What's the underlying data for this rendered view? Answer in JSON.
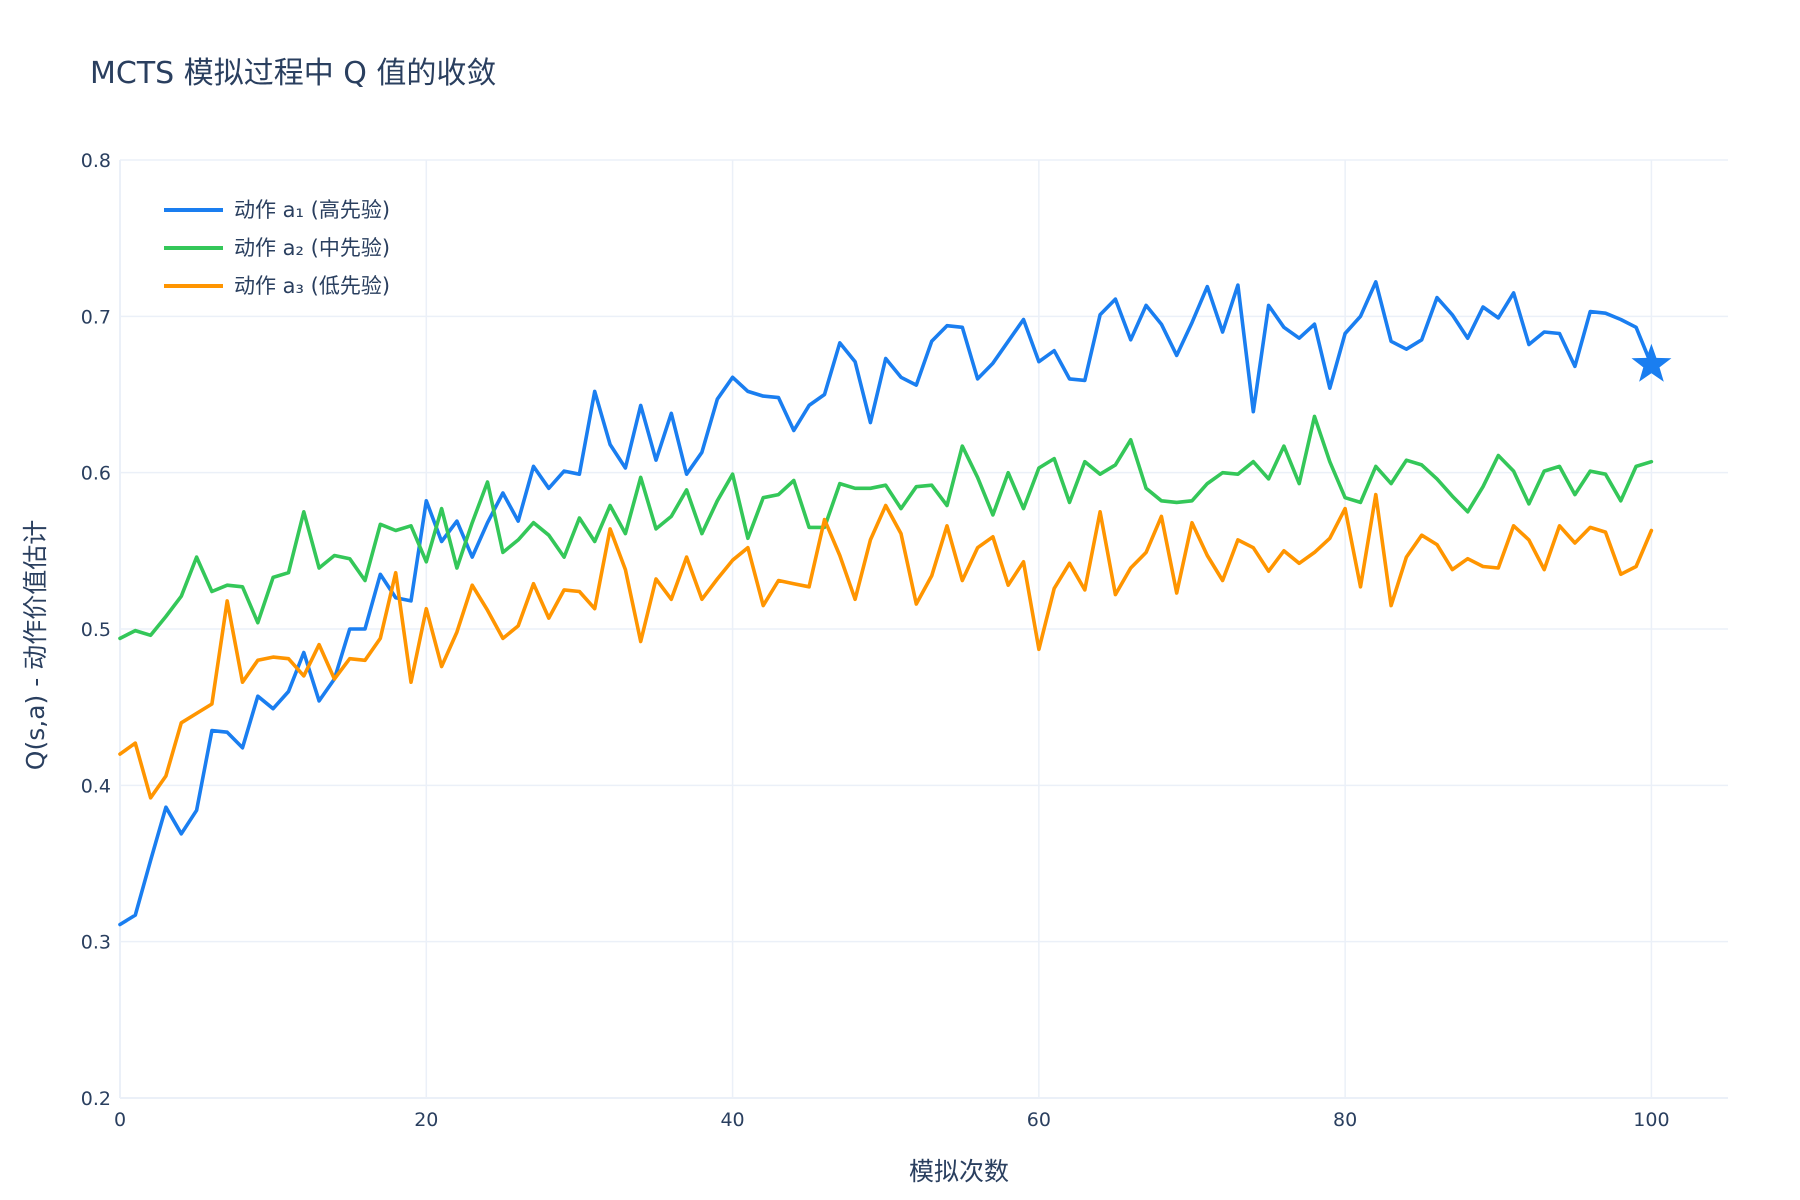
{
  "chart_data": {
    "type": "line",
    "title": "MCTS 模拟过程中 Q 值的收敛",
    "xlabel": "模拟次数",
    "ylabel": "Q(s,a) - 动作价值估计",
    "xlim": [
      0,
      105
    ],
    "ylim": [
      0.2,
      0.8
    ],
    "x_ticks": [
      0,
      20,
      40,
      60,
      80,
      100
    ],
    "y_ticks": [
      0.2,
      0.3,
      0.4,
      0.5,
      0.6,
      0.7,
      0.8
    ],
    "grid": true,
    "legend_position": "top-left",
    "x": [
      0,
      1,
      2,
      3,
      4,
      5,
      6,
      7,
      8,
      9,
      10,
      11,
      12,
      13,
      14,
      15,
      16,
      17,
      18,
      19,
      20,
      21,
      22,
      23,
      24,
      25,
      26,
      27,
      28,
      29,
      30,
      31,
      32,
      33,
      34,
      35,
      36,
      37,
      38,
      39,
      40,
      41,
      42,
      43,
      44,
      45,
      46,
      47,
      48,
      49,
      50,
      51,
      52,
      53,
      54,
      55,
      56,
      57,
      58,
      59,
      60,
      61,
      62,
      63,
      64,
      65,
      66,
      67,
      68,
      69,
      70,
      71,
      72,
      73,
      74,
      75,
      76,
      77,
      78,
      79,
      80,
      81,
      82,
      83,
      84,
      85,
      86,
      87,
      88,
      89,
      90,
      91,
      92,
      93,
      94,
      95,
      96,
      97,
      98,
      99,
      100
    ],
    "series": [
      {
        "name": "动作 a₁ (高先验)",
        "color": "#1a7ef0",
        "values": [
          0.311,
          0.317,
          0.352,
          0.386,
          0.369,
          0.384,
          0.435,
          0.434,
          0.424,
          0.457,
          0.449,
          0.46,
          0.485,
          0.454,
          0.468,
          0.5,
          0.5,
          0.535,
          0.52,
          0.518,
          0.582,
          0.556,
          0.569,
          0.546,
          0.568,
          0.587,
          0.569,
          0.604,
          0.59,
          0.601,
          0.599,
          0.652,
          0.618,
          0.603,
          0.643,
          0.608,
          0.638,
          0.599,
          0.613,
          0.647,
          0.661,
          0.652,
          0.649,
          0.648,
          0.627,
          0.643,
          0.65,
          0.683,
          0.671,
          0.632,
          0.673,
          0.661,
          0.656,
          0.684,
          0.694,
          0.693,
          0.66,
          0.67,
          0.684,
          0.698,
          0.671,
          0.678,
          0.66,
          0.659,
          0.701,
          0.711,
          0.685,
          0.707,
          0.695,
          0.675,
          0.696,
          0.719,
          0.69,
          0.72,
          0.639,
          0.707,
          0.693,
          0.686,
          0.695,
          0.654,
          0.689,
          0.7,
          0.722,
          0.684,
          0.679,
          0.685,
          0.712,
          0.701,
          0.686,
          0.706,
          0.699,
          0.715,
          0.682,
          0.69,
          0.689,
          0.668,
          0.703,
          0.702,
          0.698,
          0.693,
          0.669
        ]
      },
      {
        "name": "动作 a₂ (中先验)",
        "color": "#34c759",
        "values": [
          0.494,
          0.499,
          0.496,
          0.508,
          0.521,
          0.546,
          0.524,
          0.528,
          0.527,
          0.504,
          0.533,
          0.536,
          0.575,
          0.539,
          0.547,
          0.545,
          0.531,
          0.567,
          0.563,
          0.566,
          0.543,
          0.577,
          0.539,
          0.568,
          0.594,
          0.549,
          0.557,
          0.568,
          0.56,
          0.546,
          0.571,
          0.556,
          0.579,
          0.561,
          0.597,
          0.564,
          0.572,
          0.589,
          0.561,
          0.582,
          0.599,
          0.558,
          0.584,
          0.586,
          0.595,
          0.565,
          0.565,
          0.593,
          0.59,
          0.59,
          0.592,
          0.577,
          0.591,
          0.592,
          0.579,
          0.617,
          0.597,
          0.573,
          0.6,
          0.577,
          0.603,
          0.609,
          0.581,
          0.607,
          0.599,
          0.605,
          0.621,
          0.59,
          0.582,
          0.581,
          0.582,
          0.593,
          0.6,
          0.599,
          0.607,
          0.596,
          0.617,
          0.593,
          0.636,
          0.607,
          0.584,
          0.581,
          0.604,
          0.593,
          0.608,
          0.605,
          0.596,
          0.585,
          0.575,
          0.591,
          0.611,
          0.601,
          0.58,
          0.601,
          0.604,
          0.586,
          0.601,
          0.599,
          0.582,
          0.604,
          0.607
        ]
      },
      {
        "name": "动作 a₃ (低先验)",
        "color": "#ff9500",
        "values": [
          0.42,
          0.427,
          0.392,
          0.406,
          0.44,
          0.446,
          0.452,
          0.518,
          0.466,
          0.48,
          0.482,
          0.481,
          0.47,
          0.49,
          0.468,
          0.481,
          0.48,
          0.494,
          0.536,
          0.466,
          0.513,
          0.476,
          0.498,
          0.528,
          0.512,
          0.494,
          0.502,
          0.529,
          0.507,
          0.525,
          0.524,
          0.513,
          0.564,
          0.538,
          0.492,
          0.532,
          0.519,
          0.546,
          0.519,
          0.532,
          0.544,
          0.552,
          0.515,
          0.531,
          0.529,
          0.527,
          0.57,
          0.547,
          0.519,
          0.557,
          0.579,
          0.561,
          0.516,
          0.534,
          0.566,
          0.531,
          0.552,
          0.559,
          0.528,
          0.543,
          0.487,
          0.526,
          0.542,
          0.525,
          0.575,
          0.522,
          0.539,
          0.549,
          0.572,
          0.523,
          0.568,
          0.547,
          0.531,
          0.557,
          0.552,
          0.537,
          0.55,
          0.542,
          0.549,
          0.558,
          0.577,
          0.527,
          0.586,
          0.515,
          0.546,
          0.56,
          0.554,
          0.538,
          0.545,
          0.54,
          0.539,
          0.566,
          0.557,
          0.538,
          0.566,
          0.555,
          0.565,
          0.562,
          0.535,
          0.54,
          0.563
        ]
      }
    ],
    "annotations": [
      {
        "type": "star-marker",
        "series": 0,
        "x": 100,
        "y": 0.669,
        "color": "#1a7ef0"
      }
    ]
  }
}
